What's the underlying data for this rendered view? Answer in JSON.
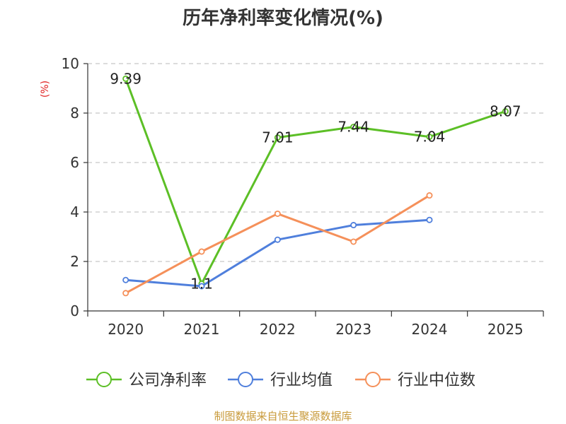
{
  "chart_data": {
    "type": "line",
    "title": "历年净利率变化情况(%)",
    "ylabel": "(%)",
    "xlabel": "",
    "categories": [
      "2020",
      "2021",
      "2022",
      "2023",
      "2024",
      "2025"
    ],
    "ylim": [
      0,
      10
    ],
    "yticks": [
      0,
      2,
      4,
      6,
      8,
      10
    ],
    "grid": "horizontal-dashed",
    "legend_position": "bottom",
    "series": [
      {
        "name": "公司净利率",
        "color": "#5cbf26",
        "values": [
          9.39,
          1.1,
          7.01,
          7.44,
          7.04,
          8.07
        ],
        "labels": [
          "9.39",
          "1.1",
          "7.01",
          "7.44",
          "7.04",
          "8.07"
        ]
      },
      {
        "name": "行业均值",
        "color": "#4f7fdc",
        "values": [
          1.25,
          1.0,
          2.88,
          3.47,
          3.68,
          null
        ]
      },
      {
        "name": "行业中位数",
        "color": "#f5905a",
        "values": [
          0.72,
          2.4,
          3.93,
          2.8,
          4.67,
          null
        ]
      }
    ]
  },
  "footer": {
    "source": "制图数据来自恒生聚源数据库"
  }
}
